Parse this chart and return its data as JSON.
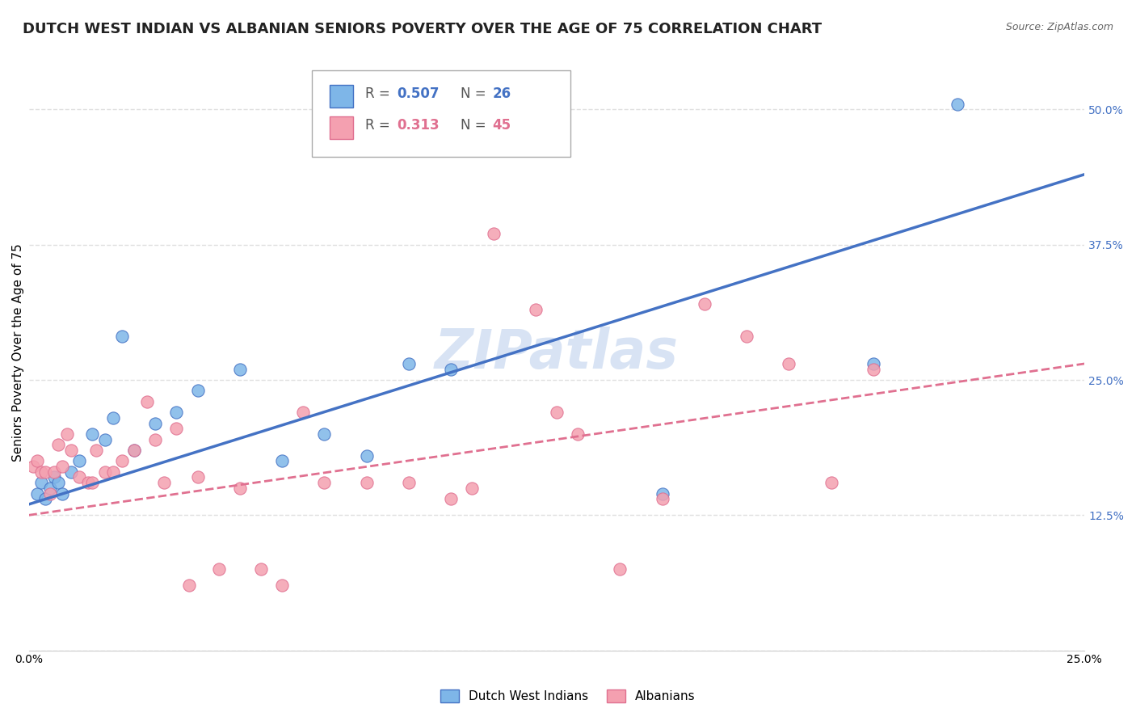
{
  "title": "DUTCH WEST INDIAN VS ALBANIAN SENIORS POVERTY OVER THE AGE OF 75 CORRELATION CHART",
  "source": "Source: ZipAtlas.com",
  "xlabel": "",
  "ylabel": "Seniors Poverty Over the Age of 75",
  "xlim": [
    0.0,
    0.25
  ],
  "ylim": [
    0.0,
    0.55
  ],
  "xticks": [
    0.0,
    0.025,
    0.05,
    0.075,
    0.1,
    0.125,
    0.15,
    0.175,
    0.2,
    0.225,
    0.25
  ],
  "ytick_positions": [
    0.0,
    0.125,
    0.25,
    0.375,
    0.5
  ],
  "yticklabels": [
    "",
    "12.5%",
    "25.0%",
    "37.5%",
    "50.0%"
  ],
  "blue_R": 0.507,
  "blue_N": 26,
  "pink_R": 0.313,
  "pink_N": 45,
  "blue_color": "#7EB6E8",
  "pink_color": "#F4A0B0",
  "blue_line_color": "#4472C4",
  "pink_line_color": "#E07090",
  "watermark": "ZIPatlas",
  "blue_scatter_x": [
    0.002,
    0.003,
    0.004,
    0.005,
    0.006,
    0.007,
    0.008,
    0.01,
    0.012,
    0.015,
    0.018,
    0.02,
    0.022,
    0.025,
    0.03,
    0.035,
    0.04,
    0.05,
    0.06,
    0.07,
    0.08,
    0.09,
    0.1,
    0.15,
    0.2,
    0.22
  ],
  "blue_scatter_y": [
    0.145,
    0.155,
    0.14,
    0.15,
    0.16,
    0.155,
    0.145,
    0.165,
    0.175,
    0.2,
    0.195,
    0.215,
    0.29,
    0.185,
    0.21,
    0.22,
    0.24,
    0.26,
    0.175,
    0.2,
    0.18,
    0.265,
    0.26,
    0.145,
    0.265,
    0.505
  ],
  "pink_scatter_x": [
    0.001,
    0.002,
    0.003,
    0.004,
    0.005,
    0.006,
    0.007,
    0.008,
    0.009,
    0.01,
    0.012,
    0.014,
    0.015,
    0.016,
    0.018,
    0.02,
    0.022,
    0.025,
    0.028,
    0.03,
    0.032,
    0.035,
    0.038,
    0.04,
    0.045,
    0.05,
    0.055,
    0.06,
    0.065,
    0.07,
    0.08,
    0.09,
    0.1,
    0.105,
    0.11,
    0.12,
    0.125,
    0.13,
    0.14,
    0.15,
    0.16,
    0.17,
    0.18,
    0.19,
    0.2
  ],
  "pink_scatter_y": [
    0.17,
    0.175,
    0.165,
    0.165,
    0.145,
    0.165,
    0.19,
    0.17,
    0.2,
    0.185,
    0.16,
    0.155,
    0.155,
    0.185,
    0.165,
    0.165,
    0.175,
    0.185,
    0.23,
    0.195,
    0.155,
    0.205,
    0.06,
    0.16,
    0.075,
    0.15,
    0.075,
    0.06,
    0.22,
    0.155,
    0.155,
    0.155,
    0.14,
    0.15,
    0.385,
    0.315,
    0.22,
    0.2,
    0.075,
    0.14,
    0.32,
    0.29,
    0.265,
    0.155,
    0.26
  ],
  "blue_trend_x": [
    0.0,
    0.25
  ],
  "blue_trend_y": [
    0.135,
    0.44
  ],
  "pink_trend_x": [
    0.0,
    0.25
  ],
  "pink_trend_y": [
    0.125,
    0.265
  ],
  "grid_color": "#E0E0E0",
  "background_color": "#FFFFFF",
  "title_fontsize": 13,
  "axis_label_fontsize": 11,
  "tick_fontsize": 10,
  "legend_fontsize": 12
}
